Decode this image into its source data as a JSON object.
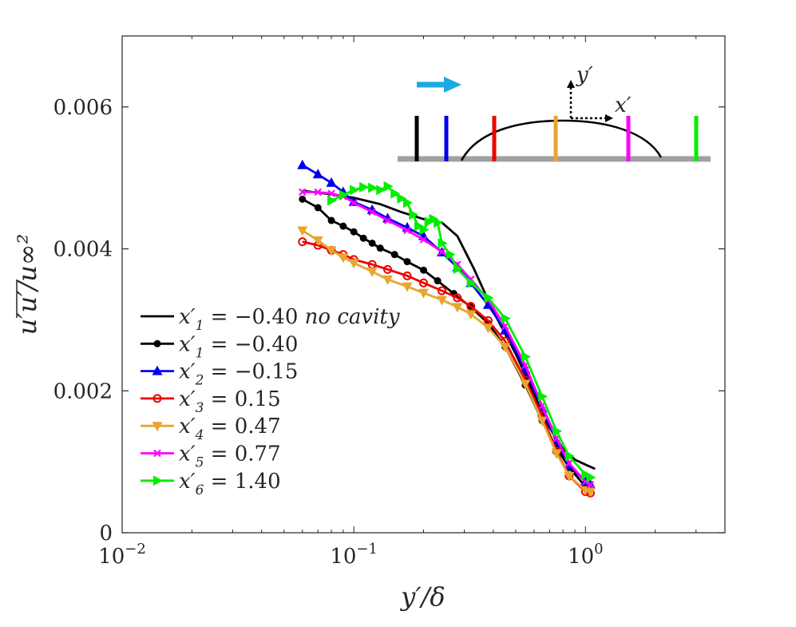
{
  "chart_data": {
    "type": "line",
    "title": "",
    "xlabel": "y′/δ",
    "ylabel": "u′u′/u∞²",
    "xscale": "log",
    "xlim": [
      0.01,
      4.0
    ],
    "ylim": [
      0,
      0.007
    ],
    "x_ticks": [
      0.01,
      0.1,
      1
    ],
    "x_tick_labels": [
      {
        "base": "10",
        "exp": "−2"
      },
      {
        "base": "10",
        "exp": "−1"
      },
      {
        "base": "10",
        "exp": "0"
      }
    ],
    "y_ticks": [
      0,
      0.002,
      0.004,
      0.006
    ],
    "y_tick_labels": [
      "0",
      "0.002",
      "0.004",
      "0.006"
    ],
    "legend_position": "bottom-left",
    "series": [
      {
        "name": "x′1 = −0.40 no cavity",
        "color": "#000000",
        "marker": "none",
        "x": [
          0.06,
          0.08,
          0.1,
          0.13,
          0.16,
          0.2,
          0.24,
          0.28,
          0.33,
          0.4,
          0.5,
          0.6,
          0.7,
          0.8,
          0.9,
          1.0,
          1.1
        ],
        "y": [
          0.00482,
          0.00477,
          0.00472,
          0.00463,
          0.00452,
          0.00442,
          0.00437,
          0.00418,
          0.00372,
          0.00312,
          0.00252,
          0.00195,
          0.00148,
          0.00118,
          0.00103,
          0.00096,
          0.0009
        ]
      },
      {
        "name": "x′1 = −0.40",
        "color": "#000000",
        "marker": "dot",
        "x": [
          0.06,
          0.07,
          0.08,
          0.09,
          0.1,
          0.11,
          0.12,
          0.13,
          0.15,
          0.17,
          0.2,
          0.23,
          0.27,
          0.32,
          0.38,
          0.45,
          0.55,
          0.65,
          0.75,
          0.85,
          1.0
        ],
        "y": [
          0.0047,
          0.00458,
          0.0044,
          0.00432,
          0.00424,
          0.00415,
          0.00408,
          0.00401,
          0.00392,
          0.00382,
          0.0037,
          0.00355,
          0.00337,
          0.00318,
          0.00295,
          0.00262,
          0.00208,
          0.00158,
          0.0012,
          0.00092,
          0.00065
        ]
      },
      {
        "name": "x′2 = −0.15",
        "color": "#0000ee",
        "marker": "triangle-up",
        "x": [
          0.06,
          0.07,
          0.08,
          0.09,
          0.1,
          0.12,
          0.14,
          0.17,
          0.2,
          0.24,
          0.28,
          0.32,
          0.38,
          0.45,
          0.55,
          0.65,
          0.75,
          0.85,
          1.0,
          1.05
        ],
        "y": [
          0.00518,
          0.00505,
          0.00493,
          0.0048,
          0.00466,
          0.00455,
          0.00443,
          0.0043,
          0.00418,
          0.00395,
          0.00374,
          0.00352,
          0.00321,
          0.00285,
          0.0023,
          0.00175,
          0.00128,
          0.00095,
          0.00072,
          0.00068
        ]
      },
      {
        "name": "x′3 = 0.15",
        "color": "#ee0000",
        "marker": "circle",
        "x": [
          0.06,
          0.07,
          0.08,
          0.09,
          0.1,
          0.12,
          0.14,
          0.17,
          0.2,
          0.24,
          0.28,
          0.32,
          0.38,
          0.45,
          0.55,
          0.65,
          0.75,
          0.85,
          1.0,
          1.05
        ],
        "y": [
          0.0041,
          0.00405,
          0.00398,
          0.00392,
          0.00385,
          0.00378,
          0.00371,
          0.00362,
          0.00352,
          0.00341,
          0.00331,
          0.00319,
          0.00299,
          0.0027,
          0.00215,
          0.00165,
          0.00115,
          0.0008,
          0.00058,
          0.00056
        ]
      },
      {
        "name": "x′4 = 0.47",
        "color": "#e8a530",
        "marker": "triangle-down",
        "x": [
          0.06,
          0.07,
          0.08,
          0.09,
          0.1,
          0.12,
          0.14,
          0.17,
          0.2,
          0.24,
          0.28,
          0.32,
          0.38,
          0.45,
          0.55,
          0.65,
          0.75,
          0.85,
          1.0,
          1.05
        ],
        "y": [
          0.00426,
          0.00412,
          0.00398,
          0.00388,
          0.0038,
          0.00368,
          0.00357,
          0.00347,
          0.00338,
          0.00328,
          0.00318,
          0.00308,
          0.00289,
          0.00262,
          0.0021,
          0.00158,
          0.00112,
          0.0008,
          0.0006,
          0.00058
        ]
      },
      {
        "name": "x′5 = 0.77",
        "color": "#ff00ff",
        "marker": "x",
        "x": [
          0.06,
          0.07,
          0.08,
          0.09,
          0.1,
          0.12,
          0.14,
          0.17,
          0.2,
          0.24,
          0.28,
          0.32,
          0.38,
          0.45,
          0.55,
          0.65,
          0.75,
          0.85,
          1.0,
          1.05
        ],
        "y": [
          0.0048,
          0.0048,
          0.00478,
          0.00474,
          0.00465,
          0.00452,
          0.0044,
          0.00426,
          0.00413,
          0.00396,
          0.00378,
          0.00357,
          0.00328,
          0.00291,
          0.00236,
          0.00179,
          0.00133,
          0.00098,
          0.00072,
          0.00068
        ]
      },
      {
        "name": "x′6 = 1.40",
        "color": "#00ee00",
        "marker": "triangle-right",
        "x": [
          0.08,
          0.09,
          0.1,
          0.11,
          0.12,
          0.13,
          0.14,
          0.15,
          0.16,
          0.17,
          0.18,
          0.19,
          0.2,
          0.21,
          0.22,
          0.23,
          0.24,
          0.26,
          0.28,
          0.32,
          0.38,
          0.45,
          0.55,
          0.65,
          0.75,
          0.85,
          1.0,
          1.05
        ],
        "y": [
          0.00468,
          0.00476,
          0.00483,
          0.00487,
          0.00486,
          0.00483,
          0.00488,
          0.00478,
          0.00471,
          0.00465,
          0.00448,
          0.00432,
          0.00427,
          0.00438,
          0.00442,
          0.00437,
          0.00408,
          0.00392,
          0.00372,
          0.00352,
          0.00331,
          0.00302,
          0.00248,
          0.00192,
          0.00143,
          0.00108,
          0.00082,
          0.00078
        ]
      }
    ]
  },
  "legend": {
    "labels": [
      {
        "main": "x",
        "sub": "1",
        "rest": " = −0.40 ",
        "note": "no cavity"
      },
      {
        "main": "x",
        "sub": "1",
        "rest": " = −0.40",
        "note": ""
      },
      {
        "main": "x",
        "sub": "2",
        "rest": " = −0.15",
        "note": ""
      },
      {
        "main": "x",
        "sub": "3",
        "rest": " = 0.15",
        "note": ""
      },
      {
        "main": "x",
        "sub": "4",
        "rest": " = 0.47",
        "note": ""
      },
      {
        "main": "x",
        "sub": "5",
        "rest": " = 0.77",
        "note": ""
      },
      {
        "main": "x",
        "sub": "6",
        "rest": " = 1.40",
        "note": ""
      }
    ]
  },
  "inset": {
    "y_axis_label": "y′",
    "x_axis_label": "x′",
    "flow_arrow_color": "#1ba9e1",
    "wall_color": "#a0a0a0",
    "station_colors": [
      "#000000",
      "#0000ee",
      "#ee0000",
      "#e8a530",
      "#ff00ff",
      "#00ee00"
    ]
  }
}
